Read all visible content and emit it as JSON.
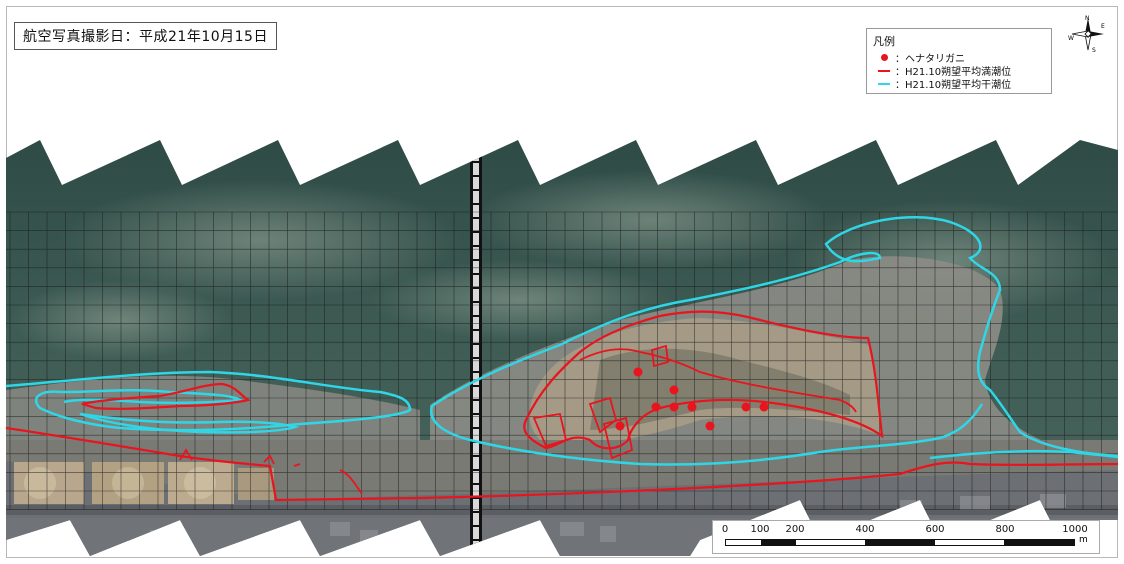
{
  "photo_date_label": "航空写真撮影日：平成21年10月15日",
  "legend": {
    "title": "凡例",
    "items": [
      {
        "type": "dot",
        "color": "#e8141e",
        "label": "：ヘナタリガニ"
      },
      {
        "type": "line",
        "color": "#e8141e",
        "label": "：H21.10朔望平均満潮位"
      },
      {
        "type": "line",
        "color": "#2fd6e6",
        "label": "：H21.10朔望平均干潮位"
      }
    ]
  },
  "compass": {
    "n": "N",
    "e": "E",
    "s": "S",
    "w": "W"
  },
  "scale": {
    "ticks": [
      0,
      100,
      200,
      400,
      600,
      800,
      1000
    ],
    "max": 1000,
    "unit": "m"
  },
  "colors": {
    "high_tide": "#e8141e",
    "low_tide": "#2fd6e6",
    "water": "#3d5a52",
    "tidal_flat": "#8c8a84",
    "sand": "#a59b86",
    "land": "#6b6e72",
    "grid": "#1a1a1a"
  },
  "crab_points": [
    {
      "id": 1
    },
    {
      "id": 2
    },
    {
      "id": 3
    },
    {
      "id": 4
    },
    {
      "id": 5
    },
    {
      "id": 6
    },
    {
      "id": 7
    },
    {
      "id": 8
    },
    {
      "id": 9
    }
  ]
}
